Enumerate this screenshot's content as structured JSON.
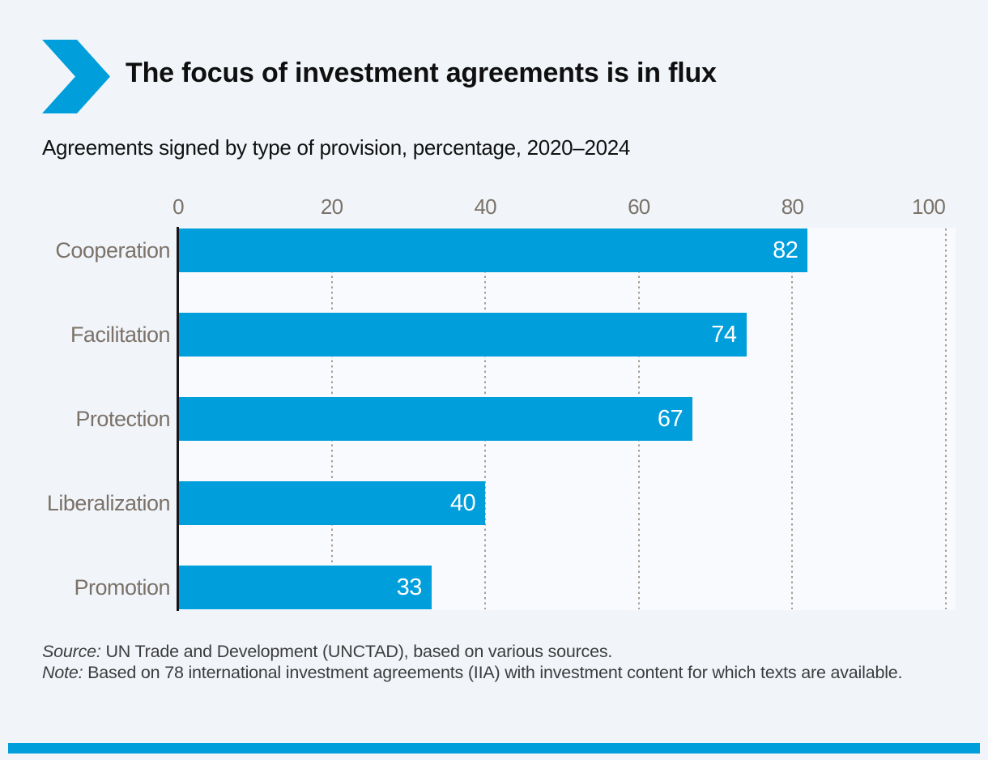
{
  "page": {
    "background_color": "#f1f5fa",
    "accent_blue": "#009edb"
  },
  "header": {
    "title": "The focus of investment agreements is in flux"
  },
  "subtitle": "Agreements signed by type of provision, percentage, 2020–2024",
  "chart_data": {
    "type": "bar",
    "orientation": "horizontal",
    "title": "Agreements signed by type of provision, percentage, 2020–2024",
    "categories": [
      "Cooperation",
      "Facilitation",
      "Protection",
      "Liberalization",
      "Promotion"
    ],
    "values": [
      82,
      74,
      67,
      40,
      33
    ],
    "xlabel": "",
    "ylabel": "",
    "xlim": [
      0,
      100
    ],
    "x_ticks": [
      0,
      20,
      40,
      60,
      80,
      100
    ],
    "grid": "dotted-vertical",
    "legend": "none",
    "bar_color": "#009edb",
    "value_label_color": "#ffffff",
    "axis_label_color": "#7b7269"
  },
  "footnotes": {
    "source_label": "Source:",
    "source_text": " UN Trade and Development (UNCTAD), based on various sources.",
    "note_label": "Note:",
    "note_text": " Based on 78 international investment agreements (IIA) with investment content for which texts are available."
  }
}
